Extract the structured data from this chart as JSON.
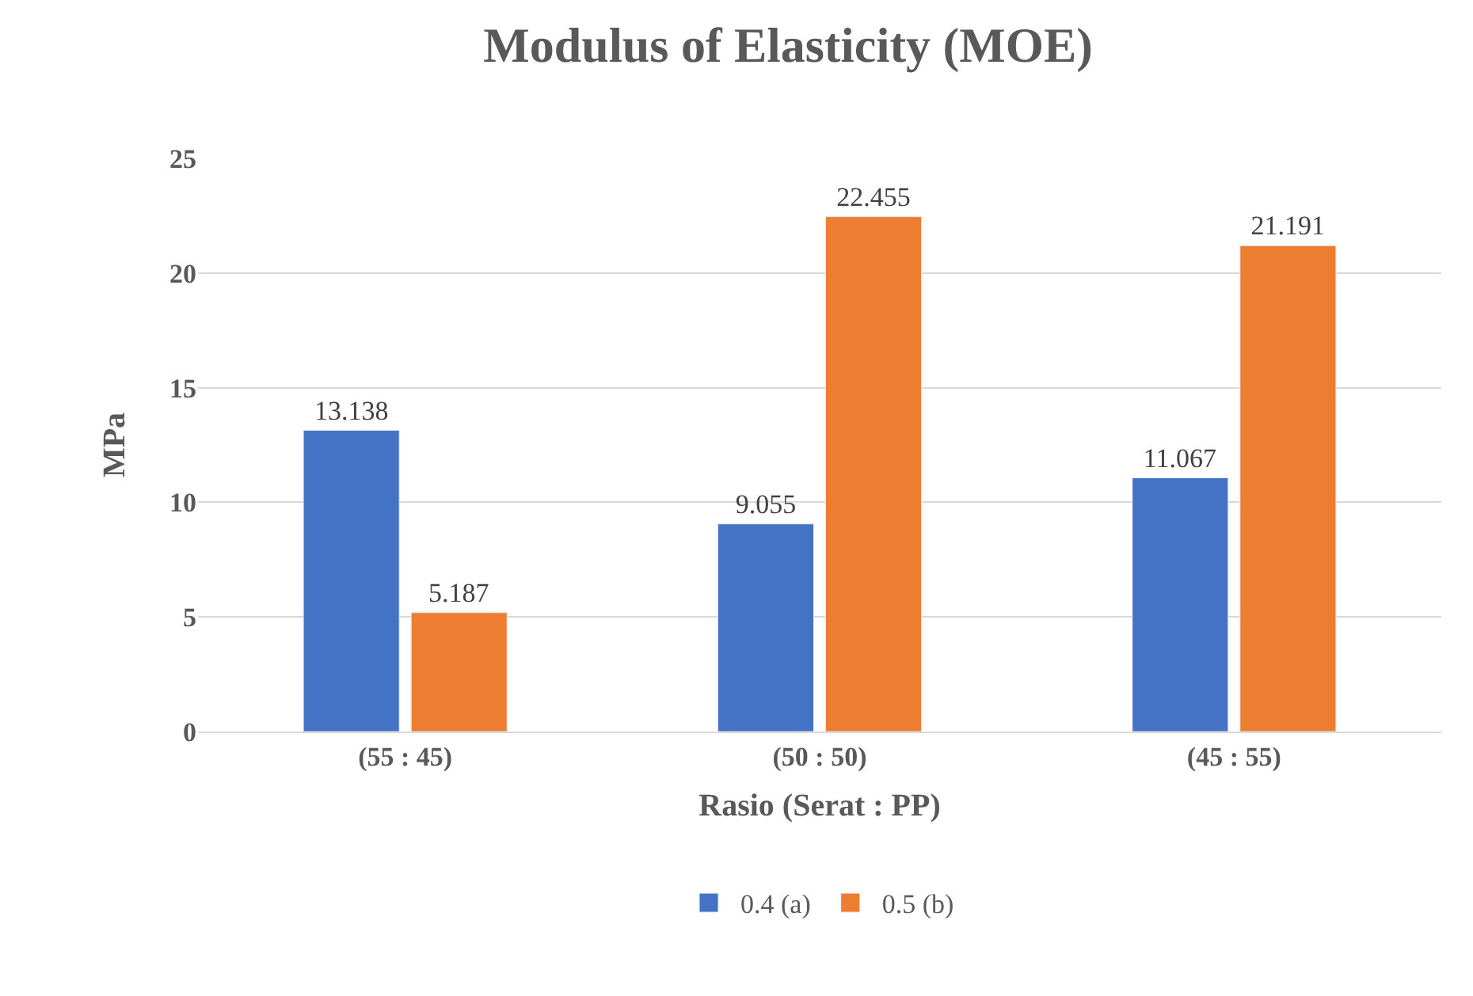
{
  "chart_data": {
    "type": "bar",
    "title": "Modulus of Elasticity (MOE)",
    "xlabel": "Rasio (Serat : PP)",
    "ylabel": "MPa",
    "categories": [
      "(55 : 45)",
      "(50 : 50)",
      "(45 : 55)"
    ],
    "series": [
      {
        "name": "0.4 (a)",
        "color": "#4472c4",
        "values": [
          13.138,
          9.055,
          11.067
        ]
      },
      {
        "name": "0.5 (b)",
        "color": "#ed7d31",
        "values": [
          5.187,
          22.455,
          21.191
        ]
      }
    ],
    "ylim": [
      0,
      25
    ],
    "yticks": [
      0,
      5,
      10,
      15,
      20,
      25
    ],
    "grid": "y",
    "legend": "bottom",
    "data_labels": true
  }
}
